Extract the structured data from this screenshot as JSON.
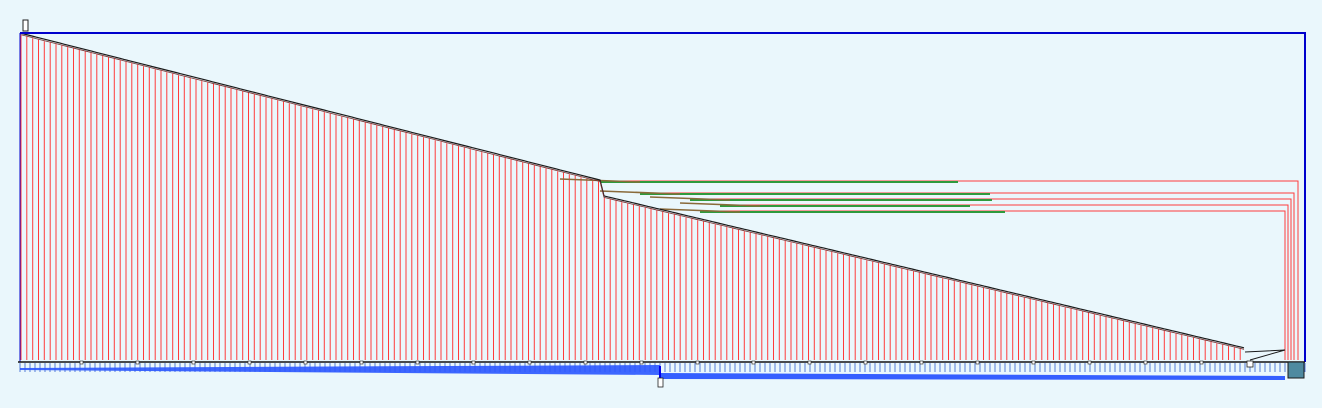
{
  "diagram": {
    "type": "routing-trace",
    "background_color": "#eaf7fc",
    "colors": {
      "frame": "#0000cc",
      "bus": "#0000ee",
      "bus_fill": "#2a56ff",
      "red_trace": "#ff3b3b",
      "green_trace": "#2e9a3c",
      "black_trace": "#1a1a1a",
      "edge_teal": "#4f8aa0",
      "comb_tick": "#2f5fd0"
    },
    "red_trace_count": 210,
    "green_branch_count": 5
  }
}
